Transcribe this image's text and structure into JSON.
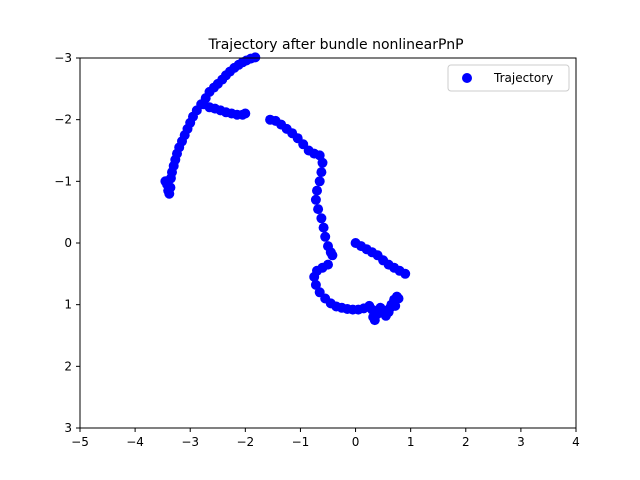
{
  "chart_data": {
    "type": "scatter",
    "title": "Trajectory after bundle nonlinearPnP",
    "xlabel": "",
    "ylabel": "",
    "xlim": [
      -5,
      4
    ],
    "ylim": [
      3,
      -3
    ],
    "y_axis_inverted": true,
    "xticks": [
      "−5",
      "−4",
      "−3",
      "−2",
      "−1",
      "0",
      "1",
      "2",
      "3",
      "4"
    ],
    "yticks": [
      "−3",
      "−2",
      "−1",
      "0",
      "1",
      "2",
      "3"
    ],
    "grid": false,
    "legend": {
      "position": "top-right",
      "entries": [
        "Trajectory"
      ]
    },
    "series": [
      {
        "name": "Trajectory",
        "color": "#0000ff",
        "marker": "circle",
        "points": [
          [
            -3.45,
            -1.0
          ],
          [
            -3.42,
            -0.95
          ],
          [
            -3.4,
            -0.85
          ],
          [
            -3.38,
            -0.8
          ],
          [
            -3.36,
            -0.9
          ],
          [
            -3.35,
            -1.05
          ],
          [
            -3.33,
            -1.15
          ],
          [
            -3.3,
            -1.25
          ],
          [
            -3.27,
            -1.35
          ],
          [
            -3.24,
            -1.45
          ],
          [
            -3.2,
            -1.55
          ],
          [
            -3.15,
            -1.65
          ],
          [
            -3.1,
            -1.75
          ],
          [
            -3.05,
            -1.85
          ],
          [
            -3.0,
            -1.95
          ],
          [
            -2.95,
            -2.05
          ],
          [
            -2.88,
            -2.15
          ],
          [
            -2.8,
            -2.25
          ],
          [
            -2.72,
            -2.35
          ],
          [
            -2.65,
            -2.45
          ],
          [
            -2.57,
            -2.52
          ],
          [
            -2.5,
            -2.58
          ],
          [
            -2.42,
            -2.65
          ],
          [
            -2.35,
            -2.72
          ],
          [
            -2.28,
            -2.78
          ],
          [
            -2.2,
            -2.84
          ],
          [
            -2.12,
            -2.89
          ],
          [
            -2.05,
            -2.93
          ],
          [
            -1.98,
            -2.96
          ],
          [
            -1.9,
            -2.99
          ],
          [
            -1.82,
            -3.01
          ],
          [
            -2.75,
            -2.25
          ],
          [
            -2.65,
            -2.2
          ],
          [
            -2.55,
            -2.18
          ],
          [
            -2.45,
            -2.15
          ],
          [
            -2.35,
            -2.12
          ],
          [
            -2.25,
            -2.1
          ],
          [
            -2.15,
            -2.08
          ],
          [
            -2.05,
            -2.08
          ],
          [
            -2.0,
            -2.1
          ],
          [
            -1.55,
            -2.0
          ],
          [
            -1.45,
            -1.98
          ],
          [
            -1.35,
            -1.92
          ],
          [
            -1.25,
            -1.85
          ],
          [
            -1.15,
            -1.78
          ],
          [
            -1.05,
            -1.7
          ],
          [
            -0.95,
            -1.6
          ],
          [
            -0.85,
            -1.5
          ],
          [
            -0.75,
            -1.45
          ],
          [
            -0.65,
            -1.42
          ],
          [
            -0.6,
            -1.3
          ],
          [
            -0.62,
            -1.15
          ],
          [
            -0.65,
            -1.0
          ],
          [
            -0.7,
            -0.85
          ],
          [
            -0.72,
            -0.7
          ],
          [
            -0.68,
            -0.55
          ],
          [
            -0.62,
            -0.4
          ],
          [
            -0.58,
            -0.25
          ],
          [
            -0.55,
            -0.1
          ],
          [
            -0.5,
            0.05
          ],
          [
            -0.45,
            0.15
          ],
          [
            -0.42,
            0.2
          ],
          [
            -0.5,
            0.35
          ],
          [
            -0.6,
            0.4
          ],
          [
            -0.7,
            0.45
          ],
          [
            -0.75,
            0.55
          ],
          [
            -0.72,
            0.68
          ],
          [
            -0.65,
            0.8
          ],
          [
            -0.55,
            0.9
          ],
          [
            -0.45,
            0.98
          ],
          [
            -0.35,
            1.03
          ],
          [
            -0.25,
            1.05
          ],
          [
            -0.15,
            1.07
          ],
          [
            -0.05,
            1.08
          ],
          [
            0.05,
            1.08
          ],
          [
            0.15,
            1.06
          ],
          [
            0.25,
            1.02
          ],
          [
            0.3,
            1.08
          ],
          [
            0.32,
            1.2
          ],
          [
            0.35,
            1.25
          ],
          [
            0.4,
            1.15
          ],
          [
            0.45,
            1.05
          ],
          [
            0.52,
            1.1
          ],
          [
            0.55,
            1.18
          ],
          [
            0.6,
            1.12
          ],
          [
            0.65,
            1.0
          ],
          [
            0.7,
            0.92
          ],
          [
            0.75,
            0.87
          ],
          [
            0.78,
            0.9
          ],
          [
            0.72,
            1.02
          ],
          [
            0.62,
            1.06
          ],
          [
            0.0,
            0.0
          ],
          [
            0.1,
            0.05
          ],
          [
            0.2,
            0.1
          ],
          [
            0.3,
            0.15
          ],
          [
            0.4,
            0.2
          ],
          [
            0.5,
            0.28
          ],
          [
            0.6,
            0.35
          ],
          [
            0.7,
            0.4
          ],
          [
            0.8,
            0.45
          ],
          [
            0.9,
            0.5
          ]
        ]
      }
    ]
  }
}
